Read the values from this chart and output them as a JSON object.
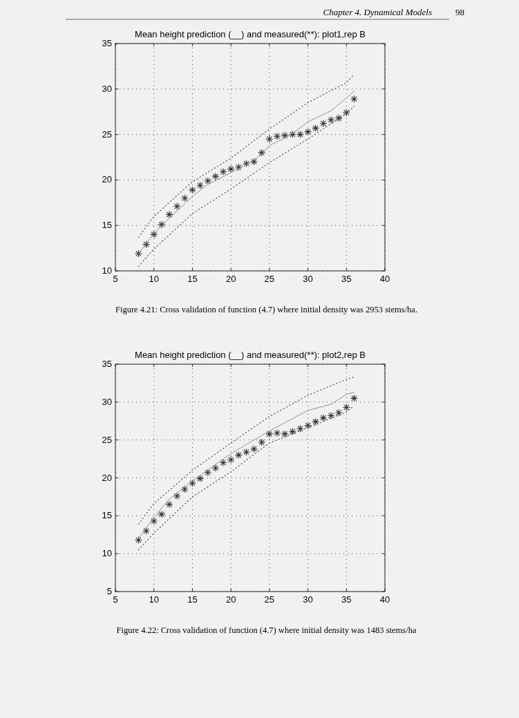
{
  "chart_data": [
    {
      "type": "line",
      "title": "Mean height prediction (__) and measured(**): plot1,rep B",
      "annotations": [
        "Chapter 4.  Dynamical Models",
        "98",
        "Figure 4.21: Cross validation of function (4.7) where initial density was 2953 stems/ha."
      ],
      "xlim": [
        5,
        40
      ],
      "xticks": [
        5,
        10,
        15,
        20,
        25,
        30,
        35,
        40
      ],
      "ylim": [
        10,
        35
      ],
      "yticks": [
        10,
        15,
        20,
        25,
        30,
        35
      ],
      "grid": true,
      "series": [
        {
          "type": "scatter",
          "marker": "cross",
          "color": "#333333",
          "x": [
            8,
            9,
            10,
            11,
            12,
            13,
            14,
            15,
            16,
            17,
            18,
            19,
            20,
            21,
            22,
            23,
            24,
            25,
            26,
            27,
            28,
            29,
            30,
            31,
            32,
            33,
            34,
            35,
            36
          ],
          "values": [
            11.9,
            12.9,
            14.0,
            15.1,
            16.2,
            17.1,
            18.0,
            18.9,
            19.4,
            19.9,
            20.4,
            20.9,
            21.2,
            21.4,
            21.8,
            22.0,
            23.0,
            24.5,
            24.8,
            24.9,
            25.0,
            25.0,
            25.3,
            25.7,
            26.2,
            26.6,
            26.8,
            27.4,
            28.9
          ]
        },
        {
          "line_style": "solid",
          "color": "#888888",
          "x": [
            8,
            10,
            12,
            15,
            17,
            20,
            22,
            24,
            25,
            27,
            28,
            30,
            33,
            35,
            36
          ],
          "values": [
            11.9,
            14.1,
            15.8,
            18.2,
            19.5,
            20.8,
            21.7,
            22.8,
            23.8,
            24.6,
            25.1,
            26.4,
            27.6,
            29.0,
            29.8
          ]
        },
        {
          "type": "line",
          "line_style": "dotted",
          "color": "#555555",
          "x": [
            8,
            10,
            15,
            20,
            25,
            30,
            35,
            36
          ],
          "values": [
            13.7,
            16.0,
            19.8,
            22.4,
            25.6,
            28.5,
            30.7,
            31.6
          ]
        },
        {
          "type": "line",
          "line_style": "dotted",
          "color": "#555555",
          "x": [
            8,
            10,
            15,
            20,
            25,
            30,
            35,
            36
          ],
          "values": [
            10.5,
            12.4,
            16.3,
            19.0,
            21.9,
            24.5,
            27.3,
            28.1
          ]
        }
      ]
    },
    {
      "type": "line",
      "title": "Mean height prediction (__) and measured(**): plot2,rep B",
      "annotations": [
        "Figure 4.22: Cross validation of function (4.7) where initial density was 1483 stems/ha"
      ],
      "xlim": [
        5,
        40
      ],
      "xticks": [
        5,
        10,
        15,
        20,
        25,
        30,
        35,
        40
      ],
      "ylim": [
        5,
        35
      ],
      "yticks": [
        5,
        10,
        15,
        20,
        25,
        30,
        35
      ],
      "grid": true,
      "series": [
        {
          "type": "scatter",
          "marker": "cross",
          "color": "#333333",
          "x": [
            8,
            9,
            10,
            11,
            12,
            13,
            14,
            15,
            16,
            17,
            18,
            19,
            20,
            21,
            22,
            23,
            24,
            25,
            26,
            27,
            28,
            29,
            30,
            31,
            32,
            33,
            34,
            35,
            36
          ],
          "values": [
            11.8,
            13.0,
            14.3,
            15.2,
            16.5,
            17.6,
            18.5,
            19.3,
            19.9,
            20.7,
            21.3,
            22.0,
            22.4,
            23.0,
            23.4,
            23.8,
            24.7,
            25.8,
            25.9,
            25.8,
            26.1,
            26.5,
            26.9,
            27.4,
            27.9,
            28.2,
            28.6,
            29.3,
            30.5
          ]
        },
        {
          "line_style": "solid",
          "color": "#888888",
          "x": [
            8,
            10,
            12,
            15,
            20,
            25,
            30,
            33,
            35,
            36
          ],
          "values": [
            12.0,
            14.8,
            17.2,
            19.6,
            23.2,
            26.2,
            28.9,
            29.7,
            31.0,
            31.3
          ]
        },
        {
          "type": "line",
          "line_style": "dotted",
          "color": "#555555",
          "x": [
            8,
            10,
            15,
            20,
            25,
            30,
            35,
            36
          ],
          "values": [
            13.9,
            16.6,
            21.0,
            24.6,
            28.1,
            30.9,
            33.0,
            33.3
          ]
        },
        {
          "type": "line",
          "line_style": "dotted",
          "color": "#555555",
          "x": [
            8,
            10,
            15,
            20,
            25,
            30,
            35,
            36
          ],
          "values": [
            10.5,
            12.7,
            17.5,
            20.8,
            24.6,
            26.6,
            28.7,
            29.5
          ]
        }
      ]
    }
  ]
}
